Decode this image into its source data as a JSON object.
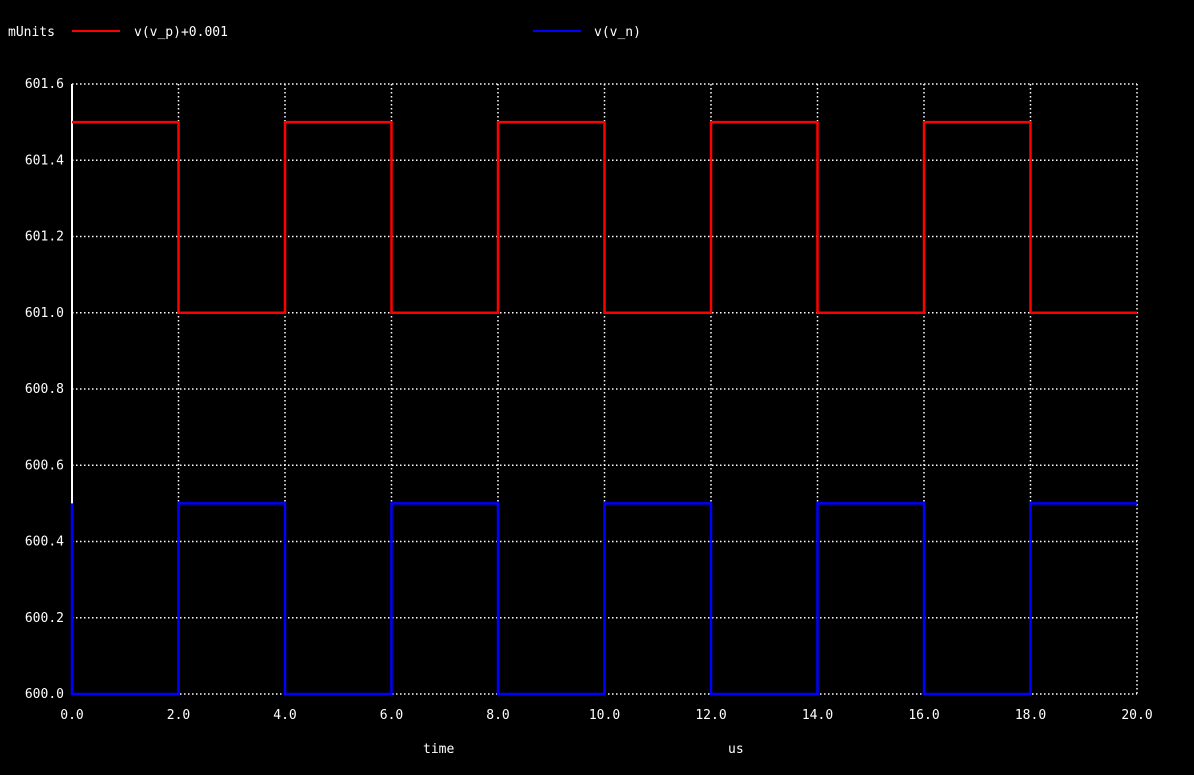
{
  "chart_data": {
    "type": "line",
    "unit_label": "mUnits",
    "xlabel": "time",
    "xunit": "us",
    "xlim": [
      0,
      20
    ],
    "ylim": [
      600.0,
      601.6
    ],
    "x_ticks": [
      "0.0",
      "2.0",
      "4.0",
      "6.0",
      "8.0",
      "10.0",
      "12.0",
      "14.0",
      "16.0",
      "18.0",
      "20.0"
    ],
    "y_ticks": [
      "600.0",
      "600.2",
      "600.4",
      "600.6",
      "600.8",
      "601.0",
      "601.2",
      "601.4",
      "601.6"
    ],
    "grid": true,
    "legend_placement": "top",
    "series": [
      {
        "name": "v(v_p)+0.001",
        "color": "#ff0000",
        "x": [
          0,
          2,
          2,
          4,
          4,
          6,
          6,
          8,
          8,
          10,
          10,
          12,
          12,
          14,
          14,
          16,
          16,
          18,
          18,
          20
        ],
        "y": [
          601.5,
          601.5,
          601.0,
          601.0,
          601.5,
          601.5,
          601.0,
          601.0,
          601.5,
          601.5,
          601.0,
          601.0,
          601.5,
          601.5,
          601.0,
          601.0,
          601.5,
          601.5,
          601.0,
          601.0
        ]
      },
      {
        "name": "v(v_n)",
        "color": "#0000ff",
        "x": [
          0,
          0,
          2,
          2,
          4,
          4,
          6,
          6,
          8,
          8,
          10,
          10,
          12,
          12,
          14,
          14,
          16,
          16,
          18,
          18,
          20
        ],
        "y": [
          600.5,
          600.0,
          600.0,
          600.5,
          600.5,
          600.0,
          600.0,
          600.5,
          600.5,
          600.0,
          600.0,
          600.5,
          600.5,
          600.0,
          600.0,
          600.5,
          600.5,
          600.0,
          600.0,
          600.5,
          600.5
        ]
      }
    ]
  }
}
